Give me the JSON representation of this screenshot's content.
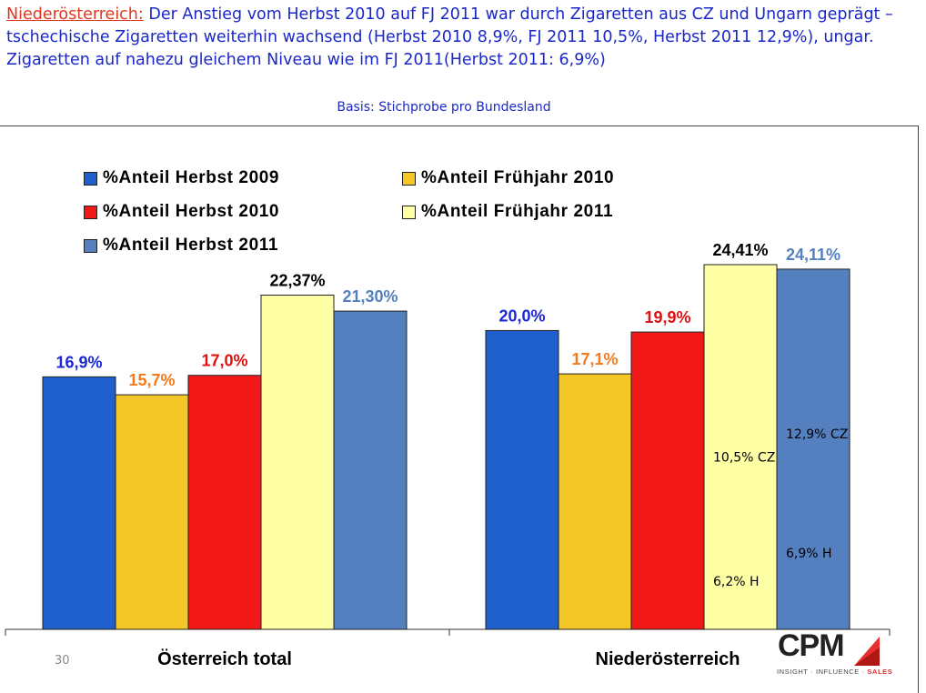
{
  "headline": {
    "region": "Niederösterreich:",
    "text": " Der Anstieg vom Herbst 2010 auf FJ 2011 war durch Zigaretten aus CZ und Ungarn geprägt – tschechische Zigaretten weiterhin wachsend (Herbst 2010 8,9%, FJ 2011 10,5%, Herbst 2011 12,9%), ungar. Zigaretten auf nahezu gleichem Niveau wie im FJ 2011(Herbst 2011: 6,9%)"
  },
  "basis": "Basis: Stichprobe pro Bundesland",
  "page_number": "30",
  "logo": {
    "name": "CPM",
    "tagline_part1": "INSIGHT · INFLUENCE · ",
    "tagline_part2": "SALES"
  },
  "colors": {
    "series": [
      "#1f5fcc",
      "#f5c628",
      "#f21818",
      "#ffffa6",
      "#5580c0"
    ],
    "labels": [
      "#1a28d8",
      "#f47a1e",
      "#e01010",
      "#000000",
      "#5580c0"
    ]
  },
  "chart_data": {
    "type": "bar",
    "categories": [
      "Österreich total",
      "Niederösterreich"
    ],
    "series": [
      {
        "name": "%Anteil Herbst 2009",
        "values": [
          16.9,
          20.0
        ],
        "labels": [
          "16,9%",
          "20,0%"
        ]
      },
      {
        "name": "%Anteil Frühjahr 2010",
        "values": [
          15.7,
          17.1
        ],
        "labels": [
          "15,7%",
          "17,1%"
        ]
      },
      {
        "name": "%Anteil Herbst 2010",
        "values": [
          17.0,
          19.9
        ],
        "labels": [
          "17,0%",
          "19,9%"
        ]
      },
      {
        "name": "%Anteil Frühjahr 2011",
        "values": [
          22.37,
          24.41
        ],
        "labels": [
          "22,37%",
          "24,41%"
        ]
      },
      {
        "name": "%Anteil Herbst 2011",
        "values": [
          21.3,
          24.11
        ],
        "labels": [
          "21,30%",
          "24,11%"
        ]
      }
    ],
    "annotations": [
      {
        "category": "Niederösterreich",
        "series": "%Anteil Frühjahr 2011",
        "text": "10,5% CZ"
      },
      {
        "category": "Niederösterreich",
        "series": "%Anteil Frühjahr 2011",
        "text": "6,2% H"
      },
      {
        "category": "Niederösterreich",
        "series": "%Anteil Herbst 2011",
        "text": "12,9% CZ"
      },
      {
        "category": "Niederösterreich",
        "series": "%Anteil Herbst 2011",
        "text": "6,9% H"
      }
    ],
    "legend_position": "top-left",
    "grid": false
  }
}
